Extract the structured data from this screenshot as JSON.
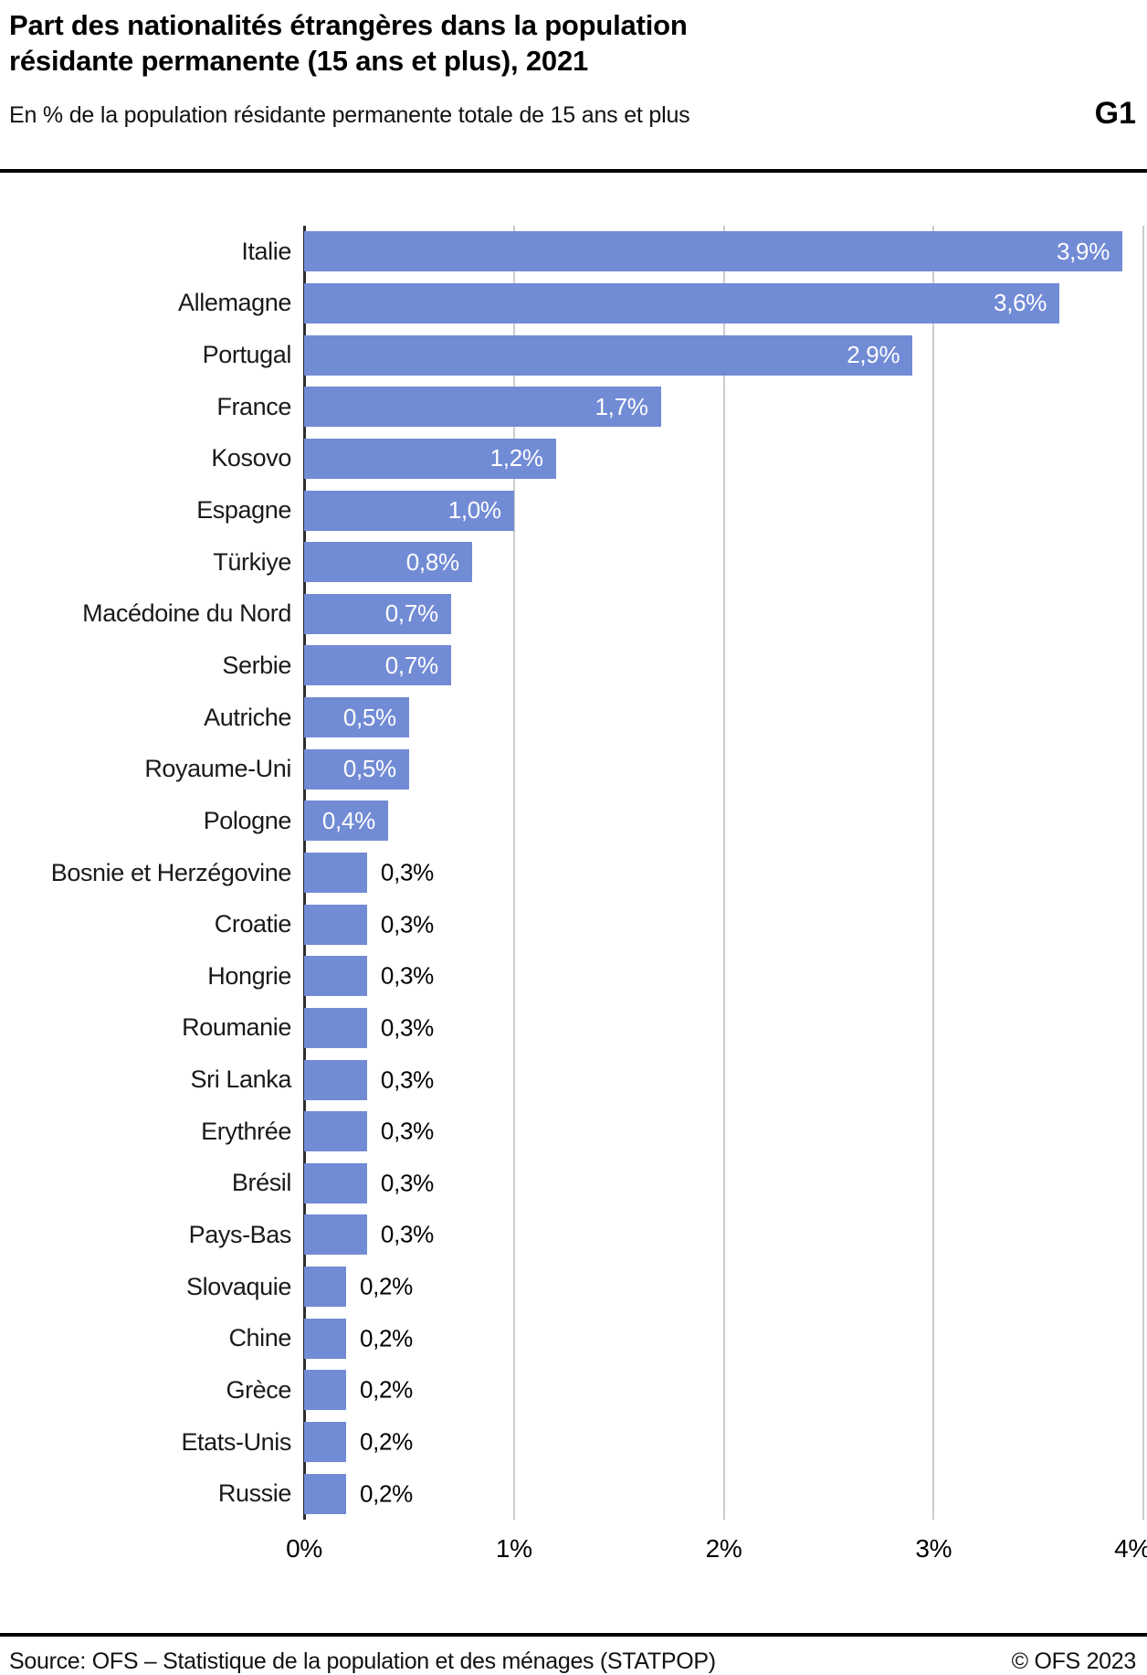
{
  "header": {
    "title_line1": "Part des nationalités étrangères dans la population",
    "title_line2": "résidante permanente (15 ans et plus), 2021",
    "subtitle": "En % de la population résidante permanente totale de 15 ans et plus",
    "graph_id": "G1"
  },
  "chart_data": {
    "type": "bar",
    "orientation": "horizontal",
    "title": "Part des nationalités étrangères dans la population résidante permanente (15 ans et plus), 2021",
    "subtitle": "En % de la population résidante permanente totale de 15 ans et plus",
    "unit": "%",
    "xlim": [
      0,
      4
    ],
    "grid": true,
    "label_inside_min": 0.4,
    "categories": [
      "Italie",
      "Allemagne",
      "Portugal",
      "France",
      "Kosovo",
      "Espagne",
      "Türkiye",
      "Macédoine du Nord",
      "Serbie",
      "Autriche",
      "Royaume-Uni",
      "Pologne",
      "Bosnie et Herzégovine",
      "Croatie",
      "Hongrie",
      "Roumanie",
      "Sri Lanka",
      "Erythrée",
      "Brésil",
      "Pays-Bas",
      "Slovaquie",
      "Chine",
      "Grèce",
      "Etats-Unis",
      "Russie"
    ],
    "values": [
      3.9,
      3.6,
      2.9,
      1.7,
      1.2,
      1.0,
      0.8,
      0.7,
      0.7,
      0.5,
      0.5,
      0.4,
      0.3,
      0.3,
      0.3,
      0.3,
      0.3,
      0.3,
      0.3,
      0.3,
      0.2,
      0.2,
      0.2,
      0.2,
      0.2
    ],
    "value_labels": [
      "3,9%",
      "3,6%",
      "2,9%",
      "1,7%",
      "1,2%",
      "1,0%",
      "0,8%",
      "0,7%",
      "0,7%",
      "0,5%",
      "0,5%",
      "0,4%",
      "0,3%",
      "0,3%",
      "0,3%",
      "0,3%",
      "0,3%",
      "0,3%",
      "0,3%",
      "0,3%",
      "0,2%",
      "0,2%",
      "0,2%",
      "0,2%",
      "0,2%"
    ],
    "x_ticks": [
      {
        "value": 0,
        "label": "0%"
      },
      {
        "value": 1,
        "label": "1%"
      },
      {
        "value": 2,
        "label": "2%"
      },
      {
        "value": 3,
        "label": "3%"
      },
      {
        "value": 4,
        "label": "4%"
      }
    ]
  },
  "footer": {
    "source": "Source: OFS – Statistique de la population et des ménages (STATPOP)",
    "copyright": "© OFS 2023"
  },
  "colors": {
    "bar": "#728bd5",
    "gridline": "#cccccc",
    "axis": "#2d2d2d",
    "value_inside": "#ffffff",
    "value_outside": "#000000",
    "rule": "#000000"
  }
}
